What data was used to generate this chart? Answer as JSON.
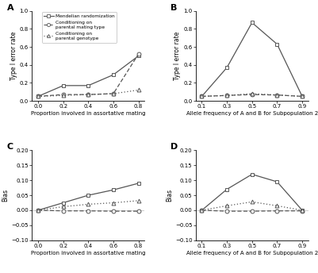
{
  "panel_A": {
    "x": [
      0,
      0.2,
      0.4,
      0.6,
      0.8
    ],
    "mendelian": [
      0.05,
      0.17,
      0.17,
      0.29,
      0.5
    ],
    "parental_mating": [
      0.05,
      0.07,
      0.07,
      0.08,
      0.52
    ],
    "parental_genotype": [
      0.05,
      0.06,
      0.07,
      0.08,
      0.12
    ],
    "xlabel": "Proportion involved in assortative mating",
    "ylabel": "Type I error rate",
    "ylim": [
      0.0,
      1.0
    ],
    "yticks": [
      0.0,
      0.2,
      0.4,
      0.6,
      0.8,
      1.0
    ],
    "label": "A"
  },
  "panel_B": {
    "x": [
      0.1,
      0.3,
      0.5,
      0.7,
      0.9
    ],
    "mendelian": [
      0.05,
      0.37,
      0.87,
      0.63,
      0.05
    ],
    "parental_mating": [
      0.05,
      0.06,
      0.07,
      0.065,
      0.05
    ],
    "parental_genotype": [
      0.05,
      0.06,
      0.08,
      0.065,
      0.05
    ],
    "xlabel": "Allele frequency of A and B for Subpopulation 2",
    "ylabel": "Type I error rate",
    "ylim": [
      0.0,
      1.0
    ],
    "yticks": [
      0.0,
      0.2,
      0.4,
      0.6,
      0.8,
      1.0
    ],
    "label": "B"
  },
  "panel_C": {
    "x": [
      0,
      0.2,
      0.4,
      0.6,
      0.8
    ],
    "mendelian": [
      0.0,
      0.025,
      0.05,
      0.068,
      0.09
    ],
    "parental_mating": [
      0.0,
      -0.002,
      -0.002,
      -0.003,
      -0.003
    ],
    "parental_genotype": [
      0.0,
      0.012,
      0.02,
      0.025,
      0.032
    ],
    "xlabel": "Proportion involved in assortative mating",
    "ylabel": "Bias",
    "ylim": [
      -0.1,
      0.2
    ],
    "yticks": [
      -0.1,
      -0.05,
      0.0,
      0.05,
      0.1,
      0.15,
      0.2
    ],
    "label": "C"
  },
  "panel_D": {
    "x": [
      0.1,
      0.3,
      0.5,
      0.7,
      0.9
    ],
    "mendelian": [
      0.0,
      0.07,
      0.12,
      0.095,
      0.0
    ],
    "parental_mating": [
      0.0,
      -0.003,
      -0.003,
      -0.002,
      -0.002
    ],
    "parental_genotype": [
      0.0,
      0.015,
      0.028,
      0.015,
      0.0
    ],
    "xlabel": "Allele frequency of A and B for Subpopulation 2",
    "ylabel": "Bias",
    "ylim": [
      -0.1,
      0.2
    ],
    "yticks": [
      -0.1,
      -0.05,
      0.0,
      0.05,
      0.1,
      0.15,
      0.2
    ],
    "label": "D"
  },
  "legend_labels": [
    "Mendelian randomization",
    "Conditioning on\nparental mating type",
    "Conditioning on\nparental genotype"
  ],
  "bg_color": "#ffffff",
  "line_color": "#555555"
}
